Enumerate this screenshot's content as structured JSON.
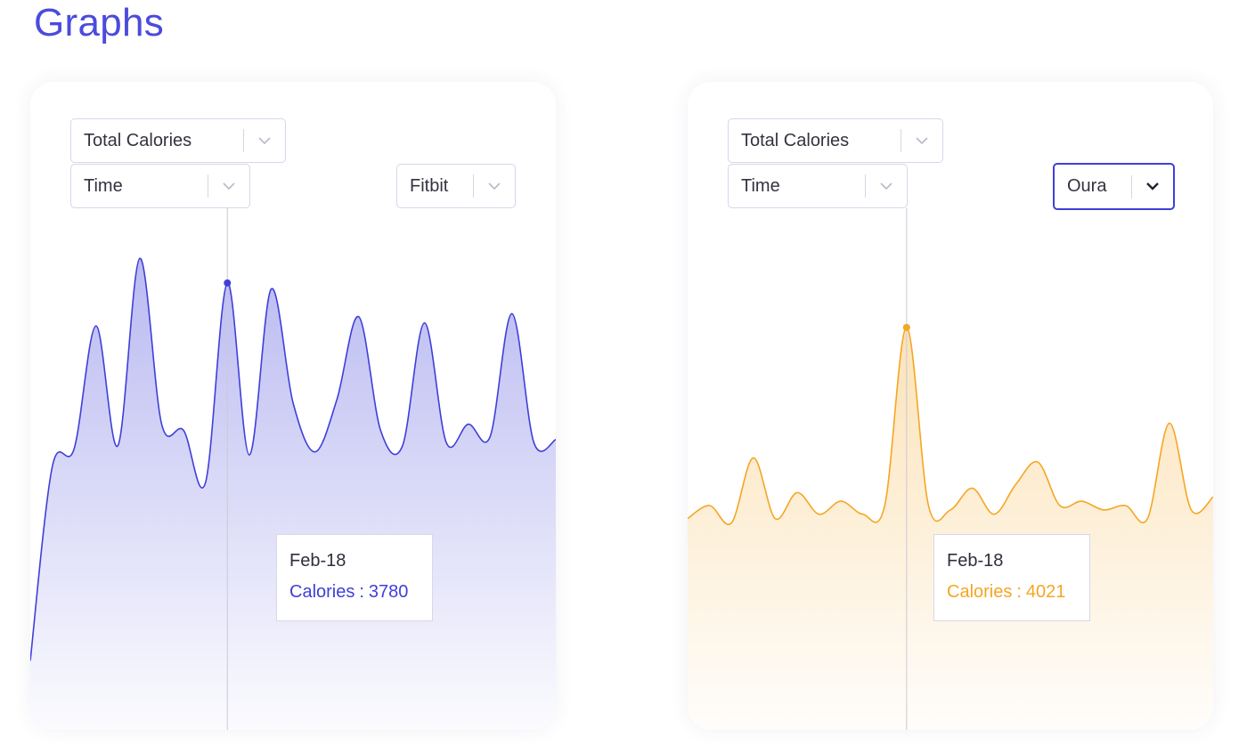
{
  "page": {
    "title": "Graphs"
  },
  "colors": {
    "title": "#4b4bdc",
    "fitbit": "#3f3fd9",
    "oura": "#f5a623"
  },
  "graphs": [
    {
      "metric_select": "Total Calories",
      "x_select": "Time",
      "source_select": "Fitbit",
      "source_open": false,
      "tooltip": {
        "date": "Feb-18",
        "label": "Calories",
        "separator": ":",
        "value": "3780"
      }
    },
    {
      "metric_select": "Total Calories",
      "x_select": "Time",
      "source_select": "Oura",
      "source_open": true,
      "tooltip": {
        "date": "Feb-18",
        "label": "Calories",
        "separator": ":",
        "value": "4021"
      }
    }
  ],
  "chart_data": [
    {
      "type": "area",
      "series": [
        {
          "values": [
            2550,
            3180,
            3240,
            3640,
            3250,
            3860,
            3320,
            3300,
            3130,
            3780,
            3220,
            3760,
            3390,
            3230,
            3400,
            3670,
            3300,
            3250,
            3650,
            3260,
            3320,
            3280,
            3680,
            3260,
            3270
          ]
        }
      ],
      "highlight_index": 9,
      "highlight_value": 3780,
      "color": "#3f3fd9",
      "grid": false,
      "axes_visible": false
    },
    {
      "type": "area",
      "series": [
        {
          "values": [
            3580,
            3610,
            3570,
            3720,
            3580,
            3640,
            3590,
            3620,
            3590,
            3610,
            4021,
            3610,
            3600,
            3650,
            3590,
            3660,
            3710,
            3610,
            3620,
            3600,
            3610,
            3580,
            3800,
            3600,
            3630
          ]
        }
      ],
      "highlight_index": 10,
      "highlight_value": 4021,
      "color": "#f5a623",
      "grid": false,
      "axes_visible": false
    }
  ]
}
